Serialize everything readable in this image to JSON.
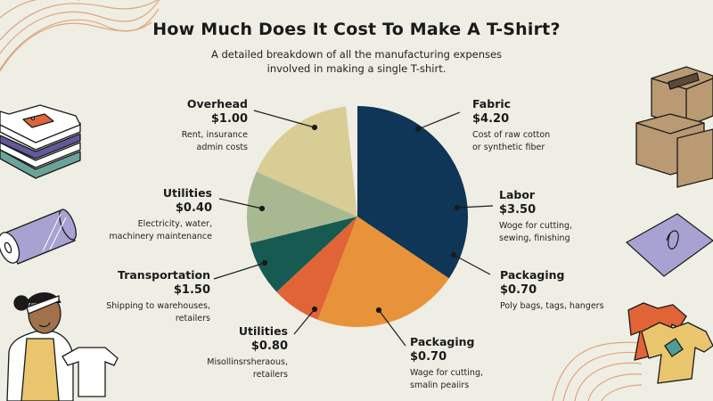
{
  "header": {
    "title": "How Much Does It Cost To Make A T-Shirt?",
    "subtitle_line1": "A detailed breakdown of all the manufacturing expenses",
    "subtitle_line2": "involved in making a single T-shirt."
  },
  "labels": [
    {
      "name": "Overhead",
      "value": "$1.00",
      "desc1": "Rent, insurance",
      "desc2": "admin costs"
    },
    {
      "name": "Fabric",
      "value": "$4.20",
      "desc1": "Cost of raw cotton",
      "desc2": "or synthetic fiber"
    },
    {
      "name": "Utilities",
      "value": "$0.40",
      "desc1": "Electricity, water,",
      "desc2": "machinery maintenance"
    },
    {
      "name": "Labor",
      "value": "$3.50",
      "desc1": "Woge for cutting,",
      "desc2": "sewing, finishing"
    },
    {
      "name": "Transportation",
      "value": "$1.50",
      "desc1": "Shipping to warehouses,",
      "desc2": "retailers"
    },
    {
      "name": "Packaging",
      "value": "$0.70",
      "desc1": "Poly bags, tags, hangers",
      "desc2": ""
    },
    {
      "name": "Utilities",
      "value": "$0.80",
      "desc1": "Misollinsrsheraous,",
      "desc2": "retailers"
    },
    {
      "name": "Packaging",
      "value": "$0.70",
      "desc1": "Wage for cutting,",
      "desc2": "smalin peaiirs"
    }
  ],
  "colors": {
    "background": "#efeee5",
    "fabric": "#0f3557",
    "packaging_orange": "#e8933a",
    "utilities_red": "#e06436",
    "transportation": "#175a52",
    "utilities_sage": "#a8b992",
    "overhead": "#d8cd95",
    "accent_lines": "#e0a57a"
  },
  "chart_data": {
    "type": "pie",
    "title": "How Much Does It Cost To Make A T-Shirt?",
    "subtitle": "A detailed breakdown of all the manufacturing expenses involved in making a single T-shirt.",
    "slices": [
      {
        "label": "Fabric / Labor",
        "value_labels": [
          "$4.20",
          "$3.50"
        ],
        "color": "#0f3557",
        "start_deg": 0,
        "end_deg": 124
      },
      {
        "label": "Packaging",
        "value_labels": [
          "$0.70"
        ],
        "color": "#e8933a",
        "start_deg": 124,
        "end_deg": 201
      },
      {
        "label": "Utilities",
        "value_labels": [
          "$0.80"
        ],
        "color": "#e06436",
        "start_deg": 201,
        "end_deg": 227
      },
      {
        "label": "Transportation",
        "value_labels": [
          "$1.50"
        ],
        "color": "#175a52",
        "start_deg": 227,
        "end_deg": 256
      },
      {
        "label": "Utilities",
        "value_labels": [
          "$0.40"
        ],
        "color": "#a8b992",
        "start_deg": 256,
        "end_deg": 294
      },
      {
        "label": "Overhead",
        "value_labels": [
          "$1.00"
        ],
        "color": "#d8cd95",
        "start_deg": 294,
        "end_deg": 354
      }
    ],
    "annotations": [
      {
        "category": "Fabric",
        "value": 4.2,
        "desc": "Cost of raw cotton or synthetic fiber"
      },
      {
        "category": "Labor",
        "value": 3.5,
        "desc": "Woge for cutting, sewing, finishing"
      },
      {
        "category": "Packaging",
        "value": 0.7,
        "desc": "Poly bags, tags, hangers"
      },
      {
        "category": "Packaging",
        "value": 0.7,
        "desc": "Wage for cutting, smalin peaiirs"
      },
      {
        "category": "Utilities",
        "value": 0.8,
        "desc": "Misollinsrsheraous, retailers"
      },
      {
        "category": "Transportation",
        "value": 1.5,
        "desc": "Shipping to warehouses, retailers"
      },
      {
        "category": "Utilities",
        "value": 0.4,
        "desc": "Electricity, water, machinery maintenance"
      },
      {
        "category": "Overhead",
        "value": 1.0,
        "desc": "Rent, insurance admin costs"
      }
    ],
    "legend": "none (callout labels)",
    "grid": false
  }
}
